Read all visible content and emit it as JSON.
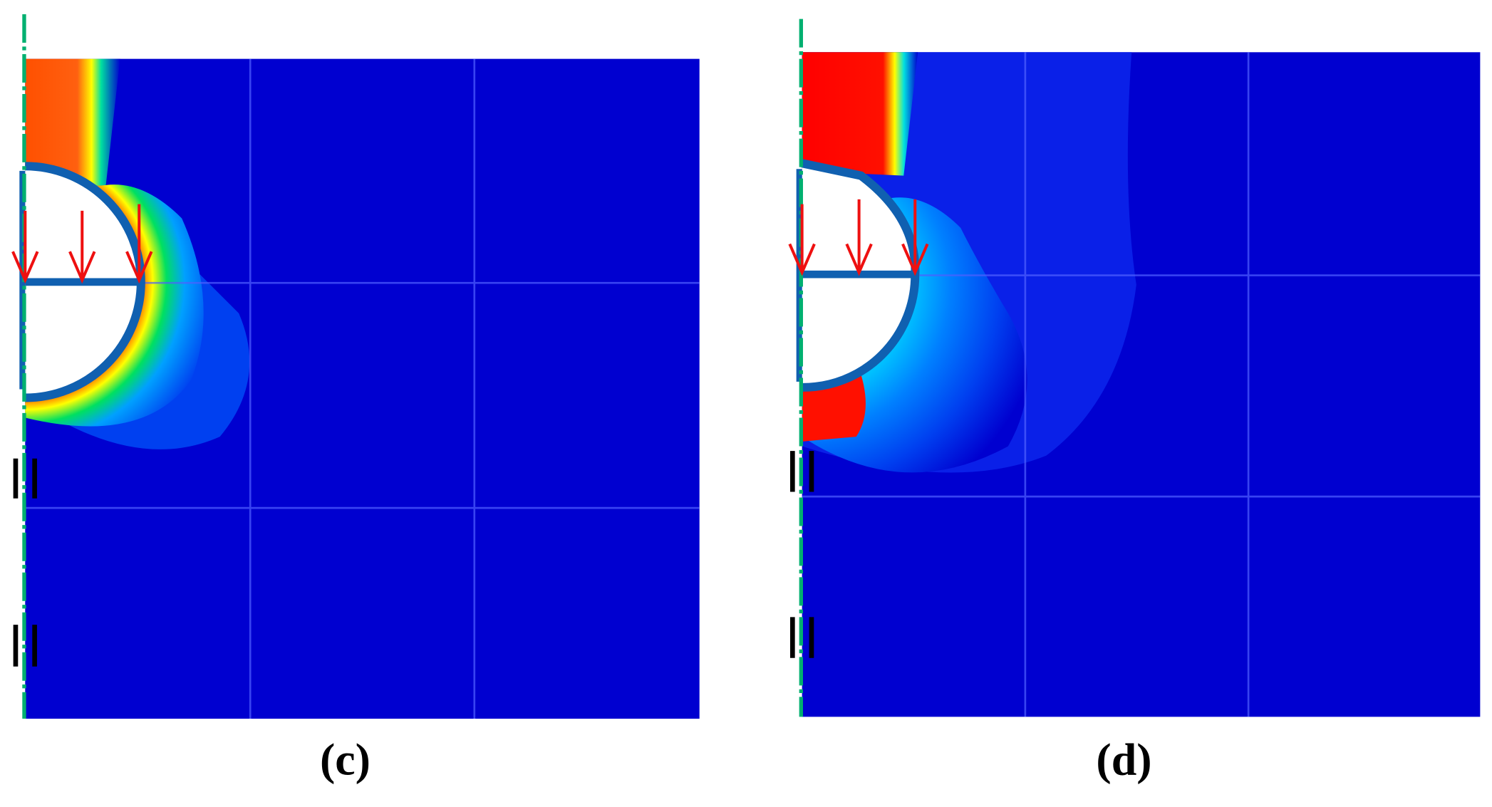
{
  "panels": [
    {
      "label": "(c)"
    },
    {
      "label": "(d)"
    }
  ]
}
